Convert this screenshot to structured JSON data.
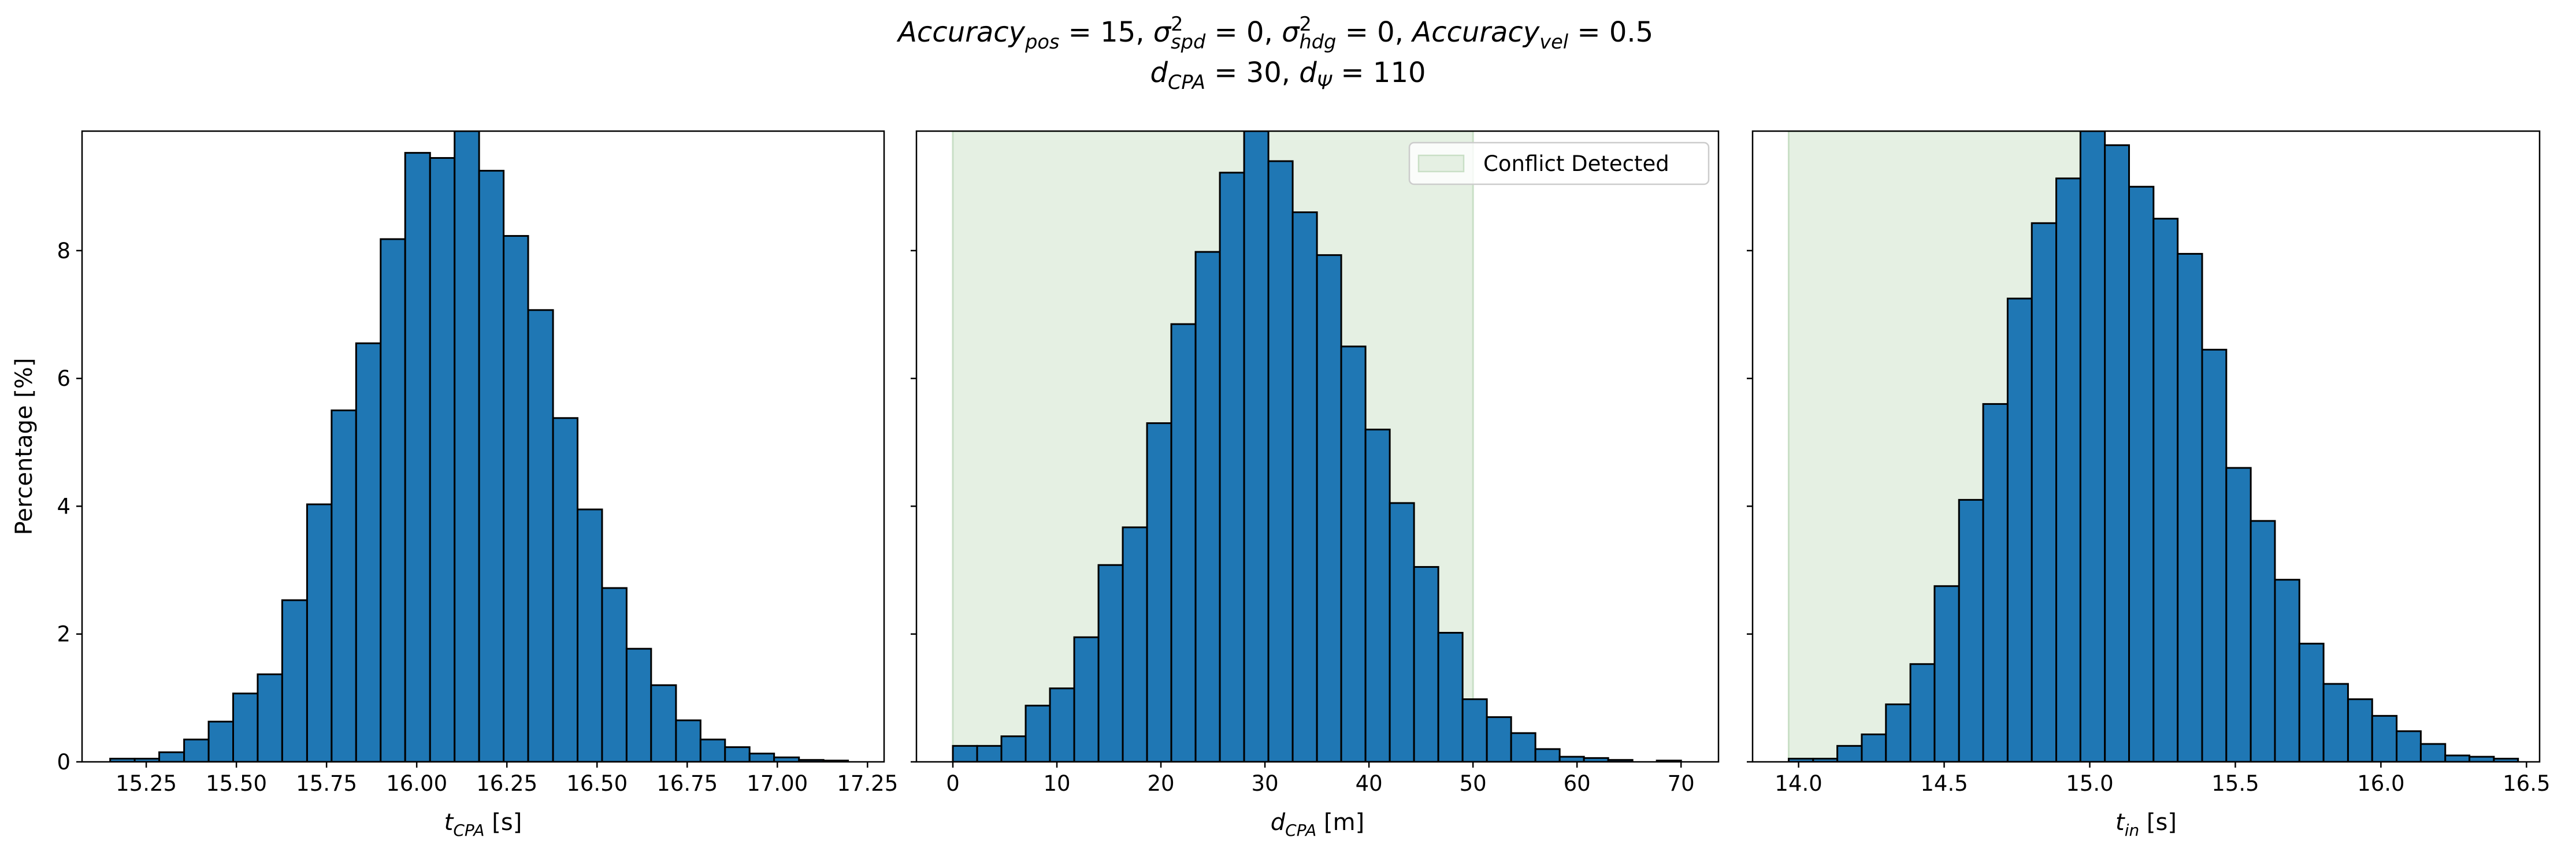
{
  "suptitle": [
    [
      {
        "t": "Accuracy",
        "k": "i"
      },
      {
        "t": "pos",
        "k": "s"
      },
      {
        "t": " = 15, ",
        "k": "n"
      },
      {
        "t": "σ",
        "k": "i"
      },
      {
        "t": "2",
        "k": "p"
      },
      {
        "t": "spd",
        "k": "s"
      },
      {
        "t": " = 0, ",
        "k": "n"
      },
      {
        "t": "σ",
        "k": "i"
      },
      {
        "t": "2",
        "k": "p"
      },
      {
        "t": "hdg",
        "k": "s"
      },
      {
        "t": " = 0, ",
        "k": "n"
      },
      {
        "t": "Accuracy",
        "k": "i"
      },
      {
        "t": "vel",
        "k": "s"
      },
      {
        "t": " = 0.5",
        "k": "n"
      }
    ],
    [
      {
        "t": "d",
        "k": "i"
      },
      {
        "t": "CPA",
        "k": "s"
      },
      {
        "t": " = 30, ",
        "k": "n"
      },
      {
        "t": "d",
        "k": "i"
      },
      {
        "t": "Ψ",
        "k": "s"
      },
      {
        "t": " = 110",
        "k": "n"
      }
    ]
  ],
  "chart_data": [
    {
      "type": "histogram",
      "color": "#1f77b4",
      "edgecolor": "#000000",
      "xlabel": [
        {
          "t": "t",
          "k": "i"
        },
        {
          "t": "CPA",
          "k": "s"
        },
        {
          "t": " [s]",
          "k": "n"
        }
      ],
      "ylabel": [
        {
          "t": "Percentage [%]",
          "k": "n"
        }
      ],
      "show_ytick_labels": true,
      "bins": [
        15.15,
        15.218,
        15.286,
        15.355,
        15.423,
        15.491,
        15.559,
        15.627,
        15.696,
        15.764,
        15.832,
        15.9,
        15.968,
        16.037,
        16.105,
        16.173,
        16.241,
        16.309,
        16.378,
        16.446,
        16.514,
        16.582,
        16.65,
        16.719,
        16.787,
        16.855,
        16.923,
        16.991,
        17.06,
        17.128,
        17.196
      ],
      "values": [
        0.05,
        0.05,
        0.15,
        0.35,
        0.63,
        1.07,
        1.37,
        2.53,
        4.03,
        5.5,
        6.55,
        8.18,
        9.53,
        9.45,
        9.87,
        9.25,
        8.23,
        7.07,
        5.38,
        3.95,
        2.72,
        1.77,
        1.2,
        0.65,
        0.35,
        0.23,
        0.13,
        0.07,
        0.03,
        0.02
      ],
      "xlim": [
        15.072,
        17.296
      ],
      "ylim": [
        0,
        9.87
      ],
      "xticks": [
        15.25,
        {
          "value": 15.5,
          "label": "15.50"
        },
        15.75,
        {
          "value": 16.0,
          "label": "16.00"
        },
        16.25,
        {
          "value": 16.5,
          "label": "16.50"
        },
        16.75,
        {
          "value": 17.0,
          "label": "17.00"
        },
        17.25
      ],
      "yticks": [
        0,
        2,
        4,
        6,
        8
      ]
    },
    {
      "type": "histogram",
      "color": "#1f77b4",
      "edgecolor": "#000000",
      "xlabel": [
        {
          "t": "d",
          "k": "i"
        },
        {
          "t": "CPA",
          "k": "s"
        },
        {
          "t": " [m]",
          "k": "n"
        }
      ],
      "show_ytick_labels": false,
      "span": {
        "range": [
          0,
          50
        ],
        "color": "#e5f0e3",
        "edge": "#c9dfc6",
        "name": "Conflict Detected"
      },
      "legend": "upper right",
      "bins": [
        0,
        2.333,
        4.667,
        7,
        9.333,
        11.667,
        14,
        16.333,
        18.667,
        21,
        23.333,
        25.667,
        28,
        30.333,
        32.667,
        35,
        37.333,
        39.667,
        42,
        44.333,
        46.667,
        49,
        51.333,
        53.667,
        56,
        58.333,
        60.667,
        63,
        65.333,
        67.667,
        70
      ],
      "values": [
        0.25,
        0.25,
        0.4,
        0.88,
        1.15,
        1.95,
        3.08,
        3.67,
        5.3,
        6.85,
        7.98,
        9.22,
        9.87,
        9.4,
        8.6,
        7.93,
        6.5,
        5.2,
        4.05,
        3.05,
        2.02,
        0.98,
        0.7,
        0.45,
        0.2,
        0.08,
        0.06,
        0.03,
        0.0,
        0.02
      ],
      "xlim": [
        -3.5,
        73.6
      ],
      "ylim": [
        0,
        9.87
      ],
      "xticks": [
        0,
        10,
        20,
        30,
        40,
        50,
        60,
        70
      ],
      "yticks": [
        0,
        2,
        4,
        6,
        8
      ]
    },
    {
      "type": "histogram",
      "color": "#1f77b4",
      "edgecolor": "#000000",
      "xlabel": [
        {
          "t": "t",
          "k": "i"
        },
        {
          "t": "in",
          "k": "s"
        },
        {
          "t": " [s]",
          "k": "n"
        }
      ],
      "show_ytick_labels": false,
      "span": {
        "range": [
          13.966,
          15.0
        ],
        "color": "#e5f0e3",
        "edge": "#c9dfc6"
      },
      "bins": [
        13.966,
        14.05,
        14.133,
        14.217,
        14.3,
        14.384,
        14.467,
        14.551,
        14.634,
        14.718,
        14.801,
        14.885,
        14.968,
        15.052,
        15.135,
        15.219,
        15.302,
        15.386,
        15.469,
        15.553,
        15.636,
        15.72,
        15.803,
        15.887,
        15.97,
        16.054,
        16.137,
        16.221,
        16.304,
        16.388,
        16.471
      ],
      "values": [
        0.05,
        0.05,
        0.25,
        0.43,
        0.9,
        1.53,
        2.75,
        4.1,
        5.6,
        7.25,
        8.43,
        9.13,
        9.87,
        9.65,
        9.0,
        8.5,
        7.95,
        6.45,
        4.6,
        3.77,
        2.85,
        1.85,
        1.22,
        0.98,
        0.72,
        0.48,
        0.28,
        0.1,
        0.08,
        0.05
      ],
      "xlim": [
        13.842,
        16.545
      ],
      "ylim": [
        0,
        9.87
      ],
      "xticks": [
        {
          "value": 14.0,
          "label": "14.0"
        },
        14.5,
        {
          "value": 15.0,
          "label": "15.0"
        },
        15.5,
        {
          "value": 16.0,
          "label": "16.0"
        },
        16.5
      ],
      "yticks": [
        0,
        2,
        4,
        6,
        8
      ]
    }
  ]
}
